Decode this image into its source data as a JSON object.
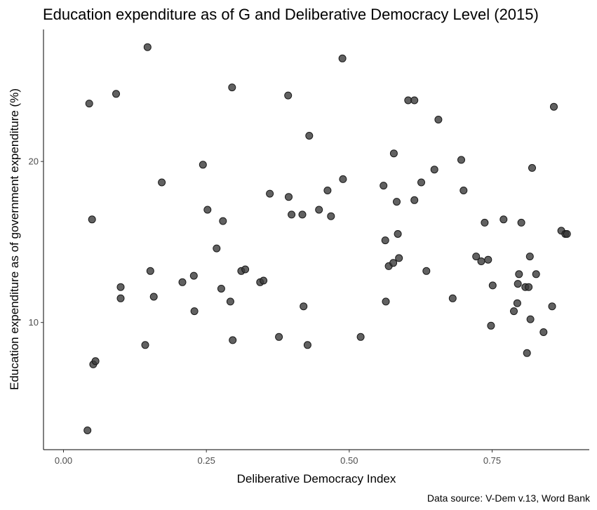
{
  "chart_data": {
    "type": "scatter",
    "title": "Education expenditure as of G and Deliberative Democracy Level (2015)",
    "xlabel": "Deliberative Democracy Index",
    "ylabel": "Education expenditure as of government expenditure (%)",
    "caption": "Data source: V-Dem v.13, Word Bank",
    "xlim": [
      -0.035,
      0.92
    ],
    "ylim": [
      2.1,
      28.2
    ],
    "x_ticks": [
      0,
      0.25,
      0.5,
      0.75
    ],
    "x_tick_labels": [
      "0.00",
      "0.25",
      "0.50",
      "0.75"
    ],
    "y_ticks": [
      10,
      20
    ],
    "y_tick_labels": [
      "10",
      "20"
    ],
    "grid": false,
    "points": [
      {
        "x": 0.045,
        "y": 23.6
      },
      {
        "x": 0.05,
        "y": 16.4
      },
      {
        "x": 0.052,
        "y": 7.4
      },
      {
        "x": 0.056,
        "y": 7.6
      },
      {
        "x": 0.042,
        "y": 3.3
      },
      {
        "x": 0.092,
        "y": 24.2
      },
      {
        "x": 0.1,
        "y": 12.2
      },
      {
        "x": 0.1,
        "y": 11.5
      },
      {
        "x": 0.147,
        "y": 27.1
      },
      {
        "x": 0.143,
        "y": 8.6
      },
      {
        "x": 0.152,
        "y": 13.2
      },
      {
        "x": 0.158,
        "y": 11.6
      },
      {
        "x": 0.172,
        "y": 18.7
      },
      {
        "x": 0.208,
        "y": 12.5
      },
      {
        "x": 0.228,
        "y": 12.9
      },
      {
        "x": 0.229,
        "y": 10.7
      },
      {
        "x": 0.244,
        "y": 19.8
      },
      {
        "x": 0.252,
        "y": 17.0
      },
      {
        "x": 0.268,
        "y": 14.6
      },
      {
        "x": 0.276,
        "y": 12.1
      },
      {
        "x": 0.279,
        "y": 16.3
      },
      {
        "x": 0.292,
        "y": 11.3
      },
      {
        "x": 0.295,
        "y": 24.6
      },
      {
        "x": 0.296,
        "y": 8.9
      },
      {
        "x": 0.311,
        "y": 13.2
      },
      {
        "x": 0.318,
        "y": 13.3
      },
      {
        "x": 0.344,
        "y": 12.5
      },
      {
        "x": 0.35,
        "y": 12.6
      },
      {
        "x": 0.361,
        "y": 18.0
      },
      {
        "x": 0.377,
        "y": 9.1
      },
      {
        "x": 0.393,
        "y": 24.1
      },
      {
        "x": 0.394,
        "y": 17.8
      },
      {
        "x": 0.399,
        "y": 16.7
      },
      {
        "x": 0.418,
        "y": 16.7
      },
      {
        "x": 0.42,
        "y": 11.0
      },
      {
        "x": 0.427,
        "y": 8.6
      },
      {
        "x": 0.43,
        "y": 21.6
      },
      {
        "x": 0.447,
        "y": 17.0
      },
      {
        "x": 0.462,
        "y": 18.2
      },
      {
        "x": 0.468,
        "y": 16.6
      },
      {
        "x": 0.488,
        "y": 26.4
      },
      {
        "x": 0.489,
        "y": 18.9
      },
      {
        "x": 0.52,
        "y": 9.1
      },
      {
        "x": 0.56,
        "y": 18.5
      },
      {
        "x": 0.563,
        "y": 15.1
      },
      {
        "x": 0.564,
        "y": 11.3
      },
      {
        "x": 0.569,
        "y": 13.5
      },
      {
        "x": 0.577,
        "y": 13.7
      },
      {
        "x": 0.578,
        "y": 20.5
      },
      {
        "x": 0.583,
        "y": 17.5
      },
      {
        "x": 0.585,
        "y": 15.5
      },
      {
        "x": 0.587,
        "y": 14.0
      },
      {
        "x": 0.603,
        "y": 23.8
      },
      {
        "x": 0.614,
        "y": 23.8
      },
      {
        "x": 0.614,
        "y": 17.6
      },
      {
        "x": 0.626,
        "y": 18.7
      },
      {
        "x": 0.635,
        "y": 13.2
      },
      {
        "x": 0.649,
        "y": 19.5
      },
      {
        "x": 0.656,
        "y": 22.6
      },
      {
        "x": 0.681,
        "y": 11.5
      },
      {
        "x": 0.696,
        "y": 20.1
      },
      {
        "x": 0.7,
        "y": 18.2
      },
      {
        "x": 0.722,
        "y": 14.1
      },
      {
        "x": 0.731,
        "y": 13.8
      },
      {
        "x": 0.737,
        "y": 16.2
      },
      {
        "x": 0.743,
        "y": 13.9
      },
      {
        "x": 0.748,
        "y": 9.8
      },
      {
        "x": 0.751,
        "y": 12.3
      },
      {
        "x": 0.77,
        "y": 16.4
      },
      {
        "x": 0.788,
        "y": 10.7
      },
      {
        "x": 0.794,
        "y": 11.2
      },
      {
        "x": 0.795,
        "y": 12.4
      },
      {
        "x": 0.797,
        "y": 13.0
      },
      {
        "x": 0.801,
        "y": 16.2
      },
      {
        "x": 0.808,
        "y": 12.2
      },
      {
        "x": 0.811,
        "y": 8.1
      },
      {
        "x": 0.814,
        "y": 12.2
      },
      {
        "x": 0.816,
        "y": 14.1
      },
      {
        "x": 0.817,
        "y": 10.2
      },
      {
        "x": 0.82,
        "y": 19.6
      },
      {
        "x": 0.827,
        "y": 13.0
      },
      {
        "x": 0.84,
        "y": 9.4
      },
      {
        "x": 0.855,
        "y": 11.0
      },
      {
        "x": 0.858,
        "y": 23.4
      },
      {
        "x": 0.871,
        "y": 15.7
      },
      {
        "x": 0.878,
        "y": 15.5
      },
      {
        "x": 0.881,
        "y": 15.5
      }
    ]
  }
}
